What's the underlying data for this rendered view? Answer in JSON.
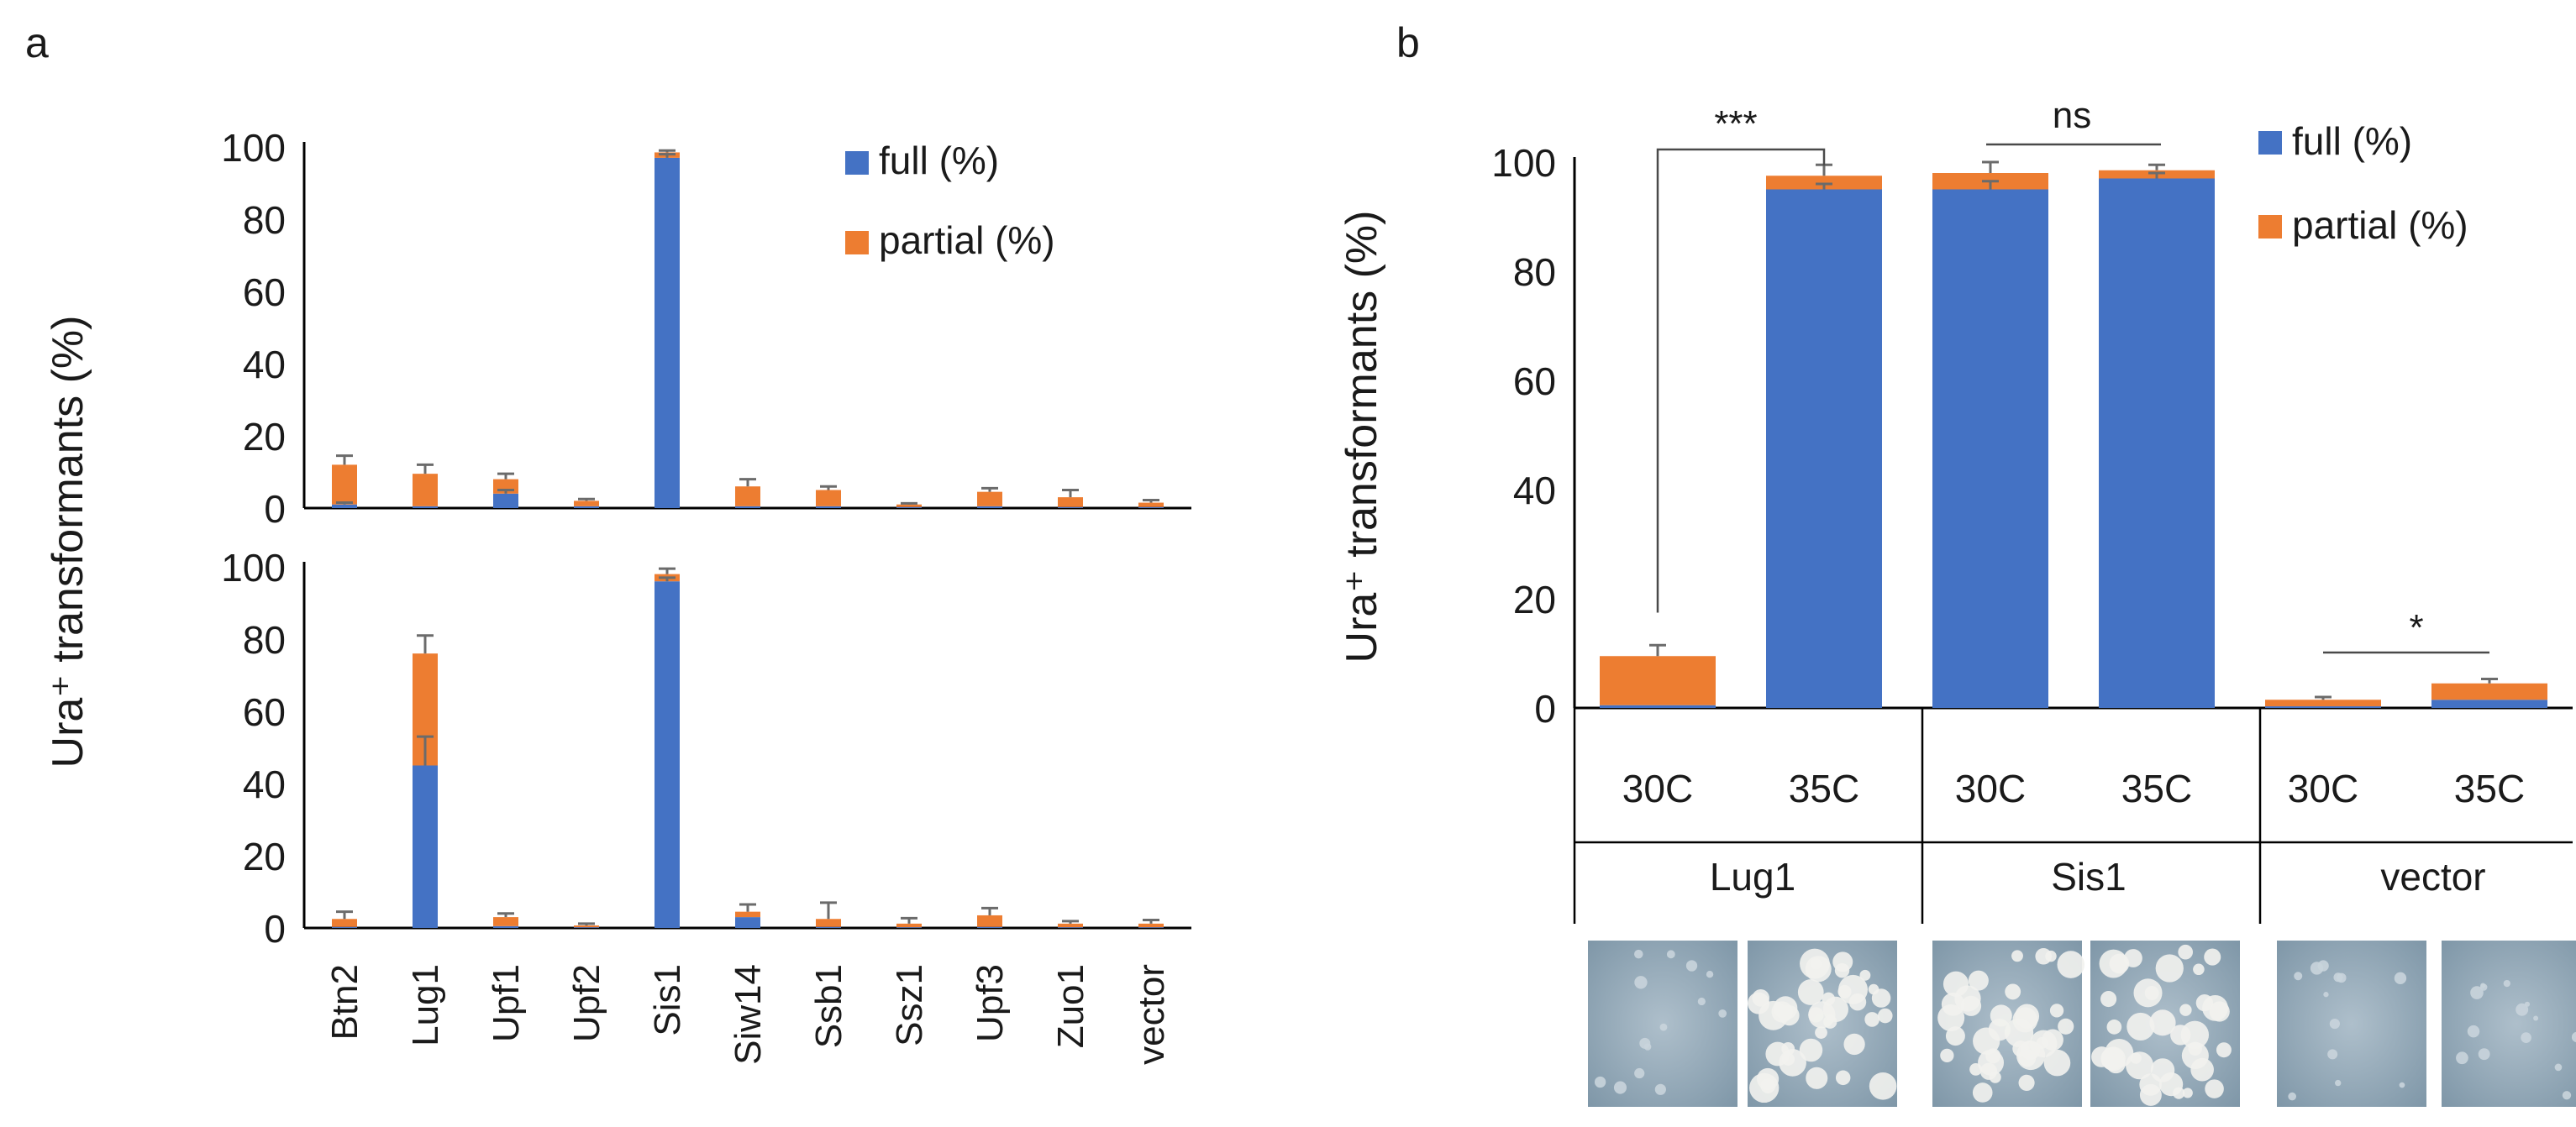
{
  "colors": {
    "full": "#4472C4",
    "partial": "#ED7D31",
    "error": "#6b6b6b"
  },
  "chart_data": [
    {
      "panel": "a",
      "type": "bar",
      "stacked": true,
      "title": "a",
      "ylabel": "Ura⁺ transformants (%)",
      "xlabel": "",
      "ylim": [
        0,
        100
      ],
      "yticks": [
        0,
        20,
        40,
        60,
        80,
        100
      ],
      "categories": [
        "Btn2",
        "Lug1",
        "Upf1",
        "Upf2",
        "Sis1",
        "Siw14",
        "Ssb1",
        "Ssz1",
        "Upf3",
        "Zuo1",
        "vector"
      ],
      "legend": {
        "position": "top-right",
        "items": [
          "full (%)",
          "partial (%)"
        ]
      },
      "subplots": [
        {
          "name": "top",
          "series": [
            {
              "name": "full (%)",
              "values": [
                1,
                0.5,
                4,
                0.5,
                97,
                0.5,
                0.5,
                0.3,
                0.5,
                0.3,
                0.3
              ],
              "errors": [
                0.5,
                0,
                1,
                0,
                1,
                0,
                0,
                0,
                0,
                0,
                0
              ]
            },
            {
              "name": "partial (%)",
              "values": [
                11,
                9,
                4,
                1.5,
                1.5,
                5.5,
                4.5,
                0.7,
                4,
                2.7,
                1.2
              ],
              "errors": [
                2.5,
                2.5,
                1.5,
                0.5,
                0.5,
                2,
                1,
                0.3,
                1,
                2,
                0.7
              ]
            }
          ]
        },
        {
          "name": "bottom",
          "series": [
            {
              "name": "full (%)",
              "values": [
                0.3,
                45,
                0.5,
                0.2,
                96,
                3,
                0.3,
                0.2,
                0.3,
                0.2,
                0.2
              ],
              "errors": [
                0,
                8,
                0,
                0,
                1,
                0,
                0,
                0,
                0,
                0,
                0
              ]
            },
            {
              "name": "partial (%)",
              "values": [
                2.2,
                31,
                2.5,
                0.5,
                2,
                1.5,
                2.2,
                1,
                3.2,
                1,
                1
              ],
              "errors": [
                2,
                5,
                1,
                0.5,
                1.5,
                2,
                4.5,
                1.5,
                2,
                0.7,
                1
              ]
            }
          ]
        }
      ]
    },
    {
      "panel": "b",
      "type": "bar",
      "stacked": true,
      "title": "b",
      "ylabel": "Ura⁺ transformants (%)",
      "xlabel": "",
      "ylim": [
        0,
        100
      ],
      "yticks": [
        0,
        20,
        40,
        60,
        80,
        100
      ],
      "categories": [
        "30C",
        "35C",
        "30C",
        "35C",
        "30C",
        "35C"
      ],
      "groups": [
        "Lug1",
        "Sis1",
        "vector"
      ],
      "legend": {
        "position": "top-right",
        "items": [
          "full (%)",
          "partial (%)"
        ]
      },
      "series": [
        {
          "name": "full (%)",
          "values": [
            0.5,
            95,
            95,
            97,
            0.3,
            1.5
          ],
          "errors": [
            0,
            1,
            1.5,
            1,
            0,
            0
          ]
        },
        {
          "name": "partial (%)",
          "values": [
            9,
            2.5,
            3,
            1.5,
            1.2,
            3
          ],
          "errors": [
            2,
            2,
            2,
            1,
            0.5,
            0.8
          ]
        }
      ],
      "significance": [
        {
          "label": "***",
          "between": [
            0,
            1
          ]
        },
        {
          "label": "ns",
          "between": [
            2,
            3
          ]
        },
        {
          "label": "*",
          "between": [
            4,
            5
          ]
        }
      ],
      "image_row": "colony plate images for each condition"
    }
  ]
}
